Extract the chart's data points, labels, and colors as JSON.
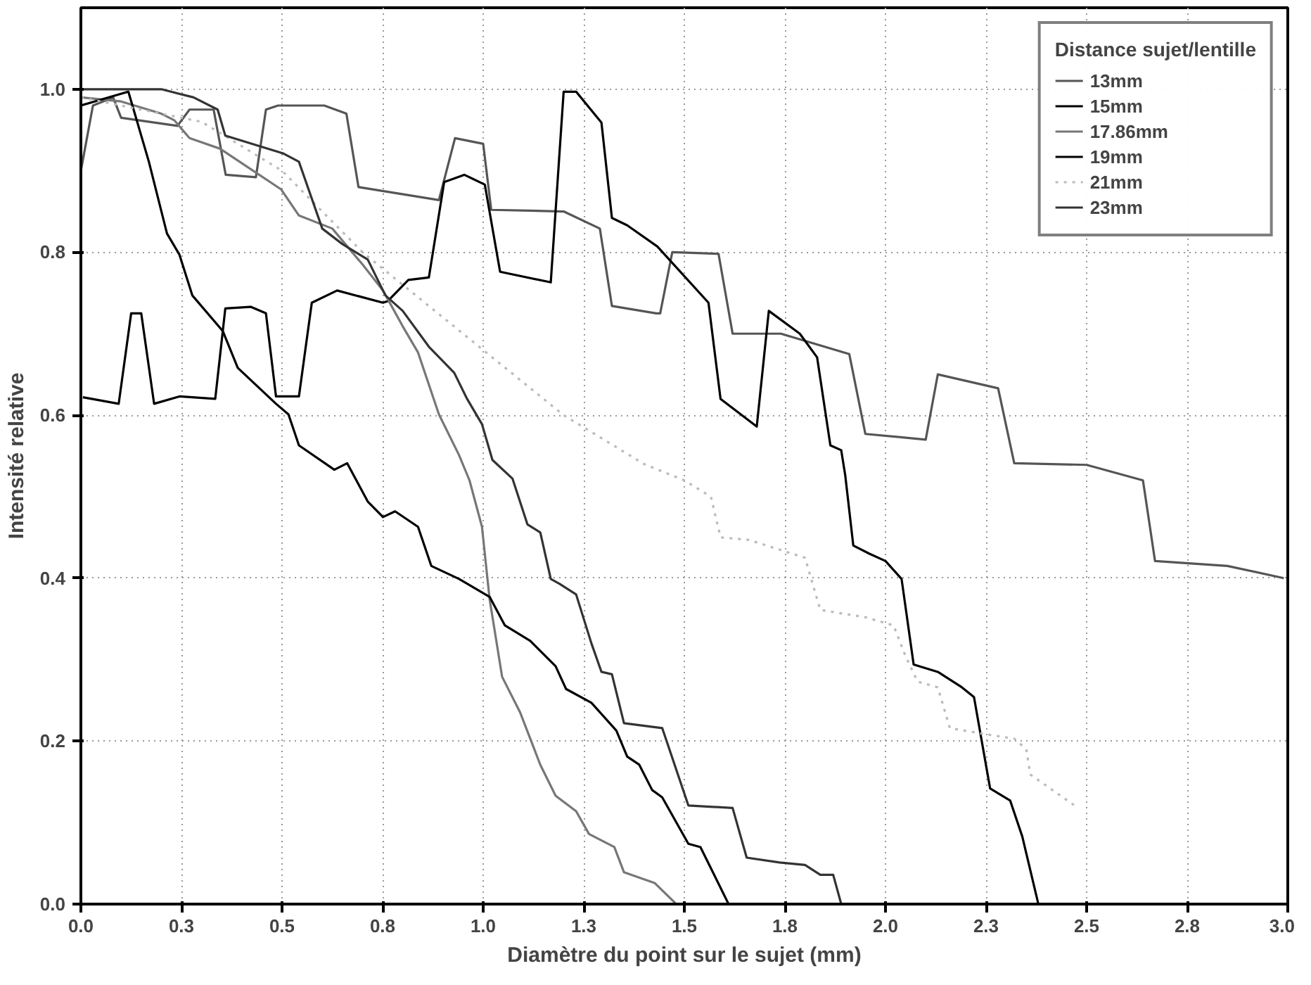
{
  "chart_data": {
    "type": "line",
    "xlabel": "Diamètre du point sur le sujet (mm)",
    "ylabel": "Intensité relative",
    "legend_title": "Distance sujet/lentille",
    "legend": "top right",
    "grid": true,
    "line_style": "solid",
    "marker": "none",
    "xlim": [
      0,
      3
    ],
    "ylim": [
      0,
      1.1
    ],
    "xticks": [
      {
        "value": 0,
        "label": "0.0"
      },
      {
        "value": 0.25,
        "label": "0.3"
      },
      {
        "value": 0.5,
        "label": "0.5"
      },
      {
        "value": 0.75,
        "label": "0.8"
      },
      {
        "value": 1,
        "label": "1.0"
      },
      {
        "value": 1.25,
        "label": "1.3"
      },
      {
        "value": 1.5,
        "label": "1.5"
      },
      {
        "value": 1.75,
        "label": "1.8"
      },
      {
        "value": 2,
        "label": "2.0"
      },
      {
        "value": 2.25,
        "label": "2.3"
      },
      {
        "value": 2.5,
        "label": "2.5"
      },
      {
        "value": 2.75,
        "label": "2.8"
      },
      {
        "value": 3,
        "label": "3.0"
      }
    ],
    "yticks": [
      {
        "value": 0,
        "label": "0.0"
      },
      {
        "value": 0.2,
        "label": "0.2"
      },
      {
        "value": 0.4,
        "label": "0.4"
      },
      {
        "value": 0.6,
        "label": "0.6"
      },
      {
        "value": 0.8,
        "label": "0.8"
      },
      {
        "value": 1,
        "label": "1.0"
      }
    ],
    "series": [
      {
        "name": "13mm",
        "color": "#555555",
        "x": [
          0,
          0.03,
          0.08,
          0.1,
          0.17,
          0.24,
          0.27,
          0.33,
          0.36,
          0.435,
          0.46,
          0.49,
          0.605,
          0.66,
          0.69,
          0.89,
          0.93,
          1.0,
          1.02,
          1.2,
          1.29,
          1.32,
          1.43,
          1.44,
          1.47,
          1.585,
          1.62,
          1.74,
          1.91,
          1.95,
          2.1,
          2.13,
          2.28,
          2.32,
          2.5,
          2.64,
          2.67,
          2.85,
          2.99
        ],
        "values": [
          0.9,
          0.98,
          0.99,
          0.965,
          0.96,
          0.955,
          0.975,
          0.975,
          0.895,
          0.892,
          0.975,
          0.98,
          0.98,
          0.97,
          0.88,
          0.864,
          0.94,
          0.933,
          0.852,
          0.85,
          0.829,
          0.734,
          0.725,
          0.725,
          0.8,
          0.798,
          0.7,
          0.7,
          0.675,
          0.577,
          0.57,
          0.65,
          0.633,
          0.541,
          0.539,
          0.52,
          0.421,
          0.415,
          0.4
        ]
      },
      {
        "name": "15mm",
        "color": "#000000",
        "x": [
          0.005,
          0.094,
          0.125,
          0.15,
          0.182,
          0.245,
          0.334,
          0.359,
          0.422,
          0.46,
          0.485,
          0.542,
          0.574,
          0.637,
          0.751,
          0.763,
          0.814,
          0.865,
          0.903,
          0.953,
          1.004,
          1.042,
          1.168,
          1.2,
          1.231,
          1.294,
          1.32,
          1.358,
          1.433,
          1.56,
          1.59,
          1.68,
          1.71,
          1.787,
          1.83,
          1.863,
          1.89,
          1.9,
          1.92,
          1.96,
          2.0,
          2.04,
          2.07,
          2.13,
          2.19,
          2.22,
          2.26,
          2.31,
          2.34,
          2.38
        ],
        "values": [
          0.622,
          0.614,
          0.725,
          0.725,
          0.614,
          0.623,
          0.62,
          0.731,
          0.733,
          0.725,
          0.623,
          0.623,
          0.738,
          0.753,
          0.738,
          0.74,
          0.766,
          0.769,
          0.886,
          0.895,
          0.883,
          0.776,
          0.763,
          0.997,
          0.997,
          0.959,
          0.842,
          0.833,
          0.807,
          0.738,
          0.62,
          0.586,
          0.728,
          0.7,
          0.671,
          0.563,
          0.557,
          0.526,
          0.44,
          0.43,
          0.421,
          0.399,
          0.294,
          0.285,
          0.266,
          0.254,
          0.142,
          0.127,
          0.083,
          0.0
        ]
      },
      {
        "name": "17.86mm",
        "color": "#777777",
        "x": [
          0,
          0.1,
          0.2,
          0.232,
          0.27,
          0.346,
          0.498,
          0.542,
          0.625,
          0.7,
          0.751,
          0.8,
          0.838,
          0.89,
          0.94,
          0.966,
          0.997,
          1.016,
          1.047,
          1.092,
          1.142,
          1.18,
          1.231,
          1.263,
          1.326,
          1.35,
          1.426,
          1.48
        ],
        "values": [
          0.99,
          0.985,
          0.97,
          0.962,
          0.94,
          0.927,
          0.877,
          0.845,
          0.829,
          0.785,
          0.753,
          0.709,
          0.677,
          0.601,
          0.551,
          0.52,
          0.463,
          0.374,
          0.279,
          0.235,
          0.171,
          0.133,
          0.114,
          0.086,
          0.07,
          0.039,
          0.026,
          0.0
        ]
      },
      {
        "name": "19mm",
        "color": "#000000",
        "x": [
          0,
          0.118,
          0.169,
          0.214,
          0.245,
          0.277,
          0.353,
          0.39,
          0.485,
          0.516,
          0.542,
          0.63,
          0.662,
          0.713,
          0.751,
          0.781,
          0.838,
          0.871,
          0.94,
          1.016,
          1.054,
          1.117,
          1.18,
          1.206,
          1.269,
          1.331,
          1.358,
          1.388,
          1.42,
          1.445,
          1.51,
          1.54,
          1.61
        ],
        "values": [
          0.98,
          0.997,
          0.911,
          0.823,
          0.797,
          0.747,
          0.703,
          0.658,
          0.614,
          0.601,
          0.563,
          0.533,
          0.541,
          0.494,
          0.475,
          0.482,
          0.463,
          0.415,
          0.399,
          0.377,
          0.342,
          0.323,
          0.292,
          0.264,
          0.247,
          0.213,
          0.181,
          0.171,
          0.14,
          0.131,
          0.074,
          0.07,
          0.0
        ]
      },
      {
        "name": "21mm",
        "color": "#bbbbbb",
        "line_style": "dotted",
        "x": [
          0,
          0.3,
          0.5,
          0.6,
          0.7,
          0.8,
          0.9,
          1.0,
          1.1,
          1.2,
          1.3,
          1.4,
          1.5,
          1.566,
          1.59,
          1.66,
          1.8,
          1.838,
          1.95,
          2.02,
          2.05,
          2.08,
          2.13,
          2.16,
          2.23,
          2.32,
          2.35,
          2.36,
          2.47
        ],
        "values": [
          0.99,
          0.96,
          0.9,
          0.85,
          0.8,
          0.76,
          0.72,
          0.68,
          0.64,
          0.6,
          0.57,
          0.54,
          0.52,
          0.5,
          0.45,
          0.447,
          0.425,
          0.361,
          0.352,
          0.342,
          0.304,
          0.273,
          0.266,
          0.216,
          0.21,
          0.203,
          0.19,
          0.159,
          0.121
        ]
      },
      {
        "name": "23mm",
        "color": "#333333",
        "x": [
          0,
          0.2,
          0.28,
          0.34,
          0.359,
          0.504,
          0.542,
          0.6,
          0.65,
          0.713,
          0.757,
          0.8,
          0.865,
          0.928,
          0.96,
          0.997,
          1.023,
          1.073,
          1.11,
          1.142,
          1.168,
          1.19,
          1.231,
          1.269,
          1.294,
          1.32,
          1.35,
          1.445,
          1.51,
          1.62,
          1.655,
          1.737,
          1.8,
          1.838,
          1.87,
          1.89
        ],
        "values": [
          1.0,
          1.0,
          0.99,
          0.975,
          0.943,
          0.921,
          0.911,
          0.829,
          0.81,
          0.791,
          0.747,
          0.728,
          0.684,
          0.652,
          0.62,
          0.589,
          0.545,
          0.522,
          0.466,
          0.456,
          0.399,
          0.393,
          0.38,
          0.32,
          0.285,
          0.282,
          0.222,
          0.216,
          0.121,
          0.118,
          0.057,
          0.051,
          0.048,
          0.036,
          0.036,
          0.0
        ]
      }
    ]
  }
}
